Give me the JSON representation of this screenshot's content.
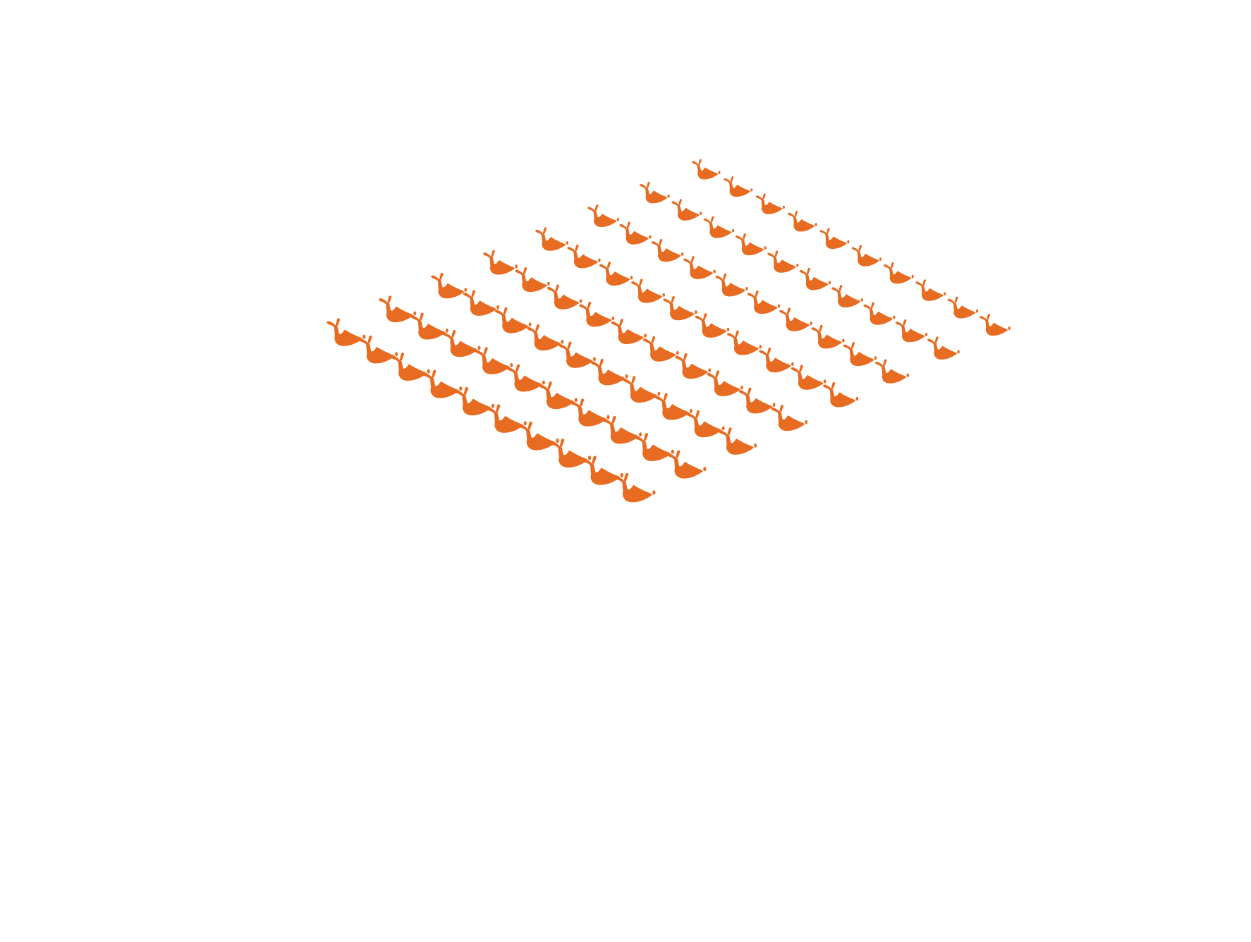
{
  "scene": {
    "background_color": "#ffffff",
    "item_color": "#e76b21",
    "item_icon": "bird-silhouette-icon",
    "arrangement": "isometric-grid",
    "rows": 8,
    "columns": 10,
    "item_count": 80
  }
}
